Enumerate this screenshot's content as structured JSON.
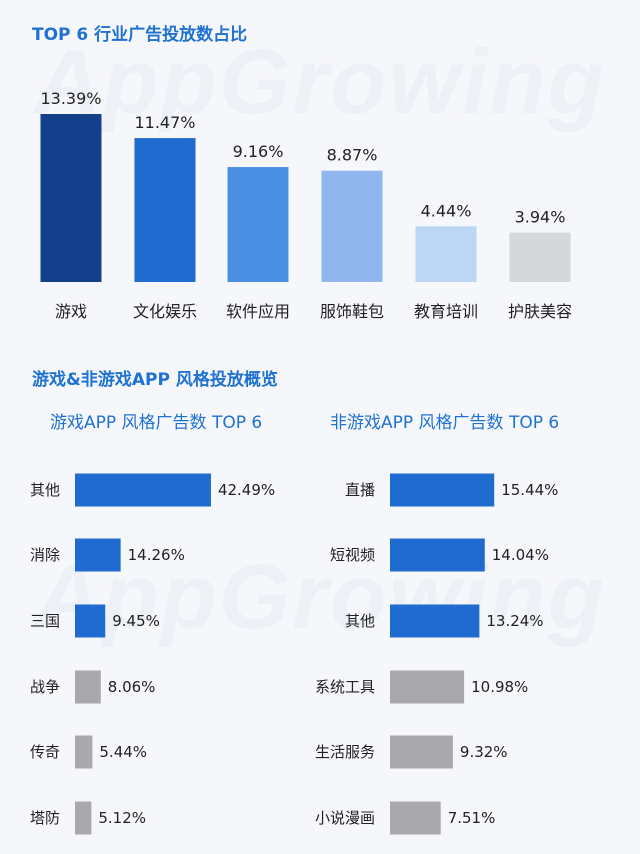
{
  "watermark": "AppGrowing",
  "top_title": "TOP 6 行业广告投放数占比",
  "overview_title": "游戏&非游戏APP 风格投放概览",
  "game_subtitle": "游戏APP 风格广告数 TOP 6",
  "nongame_subtitle": "非游戏APP 风格广告数 TOP 6",
  "colors": {
    "title": "#1f72d1",
    "industry_bars": [
      "#143f8a",
      "#1f6bd0",
      "#4b8fe3",
      "#8fb7ee",
      "#bcd6f6",
      "#d6d7db"
    ],
    "highlight_bar": "#1f6bd0",
    "gray_bar": "#a9a9ab",
    "text": "#222222"
  },
  "chart_data": [
    {
      "type": "bar",
      "title": "TOP 6 行业广告投放数占比",
      "categories": [
        "游戏",
        "文化娱乐",
        "软件应用",
        "服饰鞋包",
        "教育培训",
        "护肤美容"
      ],
      "values": [
        13.39,
        11.47,
        9.16,
        8.87,
        4.44,
        3.94
      ],
      "labels": [
        "13.39%",
        "11.47%",
        "9.16%",
        "8.87%",
        "4.44%",
        "3.94%"
      ],
      "unit": "%",
      "ylim": [
        0,
        13.39
      ],
      "grid": false
    },
    {
      "type": "bar",
      "orientation": "horizontal",
      "title": "游戏APP 风格广告数 TOP 6",
      "categories": [
        "其他",
        "消除",
        "三国",
        "战争",
        "传奇",
        "塔防"
      ],
      "values": [
        42.49,
        14.26,
        9.45,
        8.06,
        5.44,
        5.12
      ],
      "labels": [
        "42.49%",
        "14.26%",
        "9.45%",
        "8.06%",
        "5.44%",
        "5.12%"
      ],
      "highlight_count": 3,
      "unit": "%",
      "grid": false
    },
    {
      "type": "bar",
      "orientation": "horizontal",
      "title": "非游戏APP 风格广告数 TOP 6",
      "categories": [
        "直播",
        "短视频",
        "其他",
        "系统工具",
        "生活服务",
        "小说漫画"
      ],
      "values": [
        15.44,
        14.04,
        13.24,
        10.98,
        9.32,
        7.51
      ],
      "labels": [
        "15.44%",
        "14.04%",
        "13.24%",
        "10.98%",
        "9.32%",
        "7.51%"
      ],
      "highlight_count": 3,
      "unit": "%",
      "grid": false
    }
  ]
}
